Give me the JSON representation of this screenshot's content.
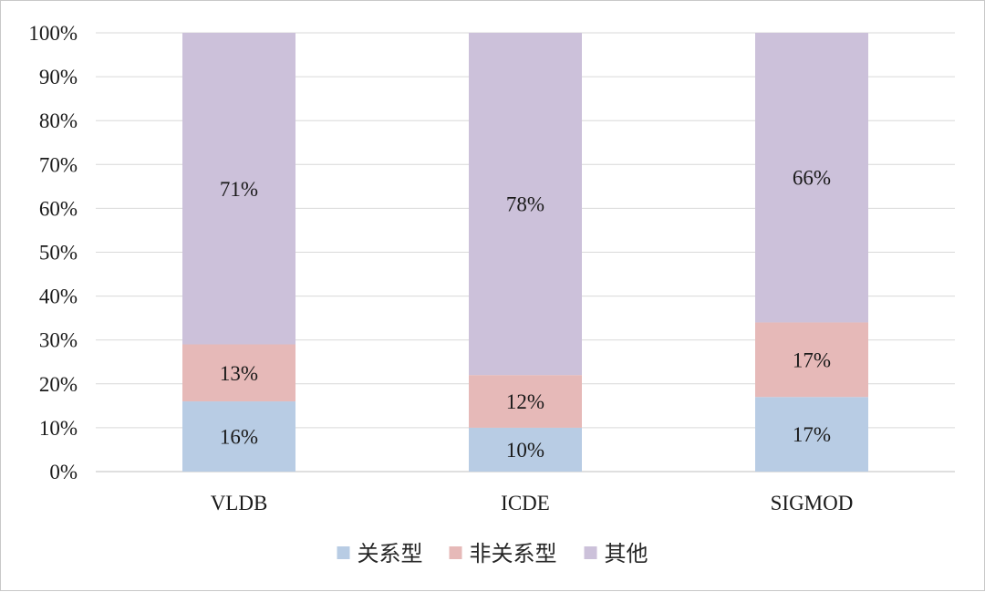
{
  "chart_data": {
    "type": "bar",
    "stacked": true,
    "percent": true,
    "categories": [
      "VLDB",
      "ICDE",
      "SIGMOD"
    ],
    "series": [
      {
        "name": "关系型",
        "color": "#b8cce4",
        "values": [
          16,
          10,
          17
        ],
        "labels": [
          "16%",
          "10%",
          "17%"
        ]
      },
      {
        "name": "非关系型",
        "color": "#e6b9b8",
        "values": [
          13,
          12,
          17
        ],
        "labels": [
          "13%",
          "12%",
          "17%"
        ]
      },
      {
        "name": "其他",
        "color": "#ccc1da",
        "values": [
          71,
          78,
          66
        ],
        "labels": [
          "71%",
          "78%",
          "66%"
        ]
      }
    ],
    "yticks": [
      "0%",
      "10%",
      "20%",
      "30%",
      "40%",
      "50%",
      "60%",
      "70%",
      "80%",
      "90%",
      "100%"
    ],
    "ylim": [
      0,
      100
    ],
    "grid": true,
    "legend": "bottom"
  }
}
